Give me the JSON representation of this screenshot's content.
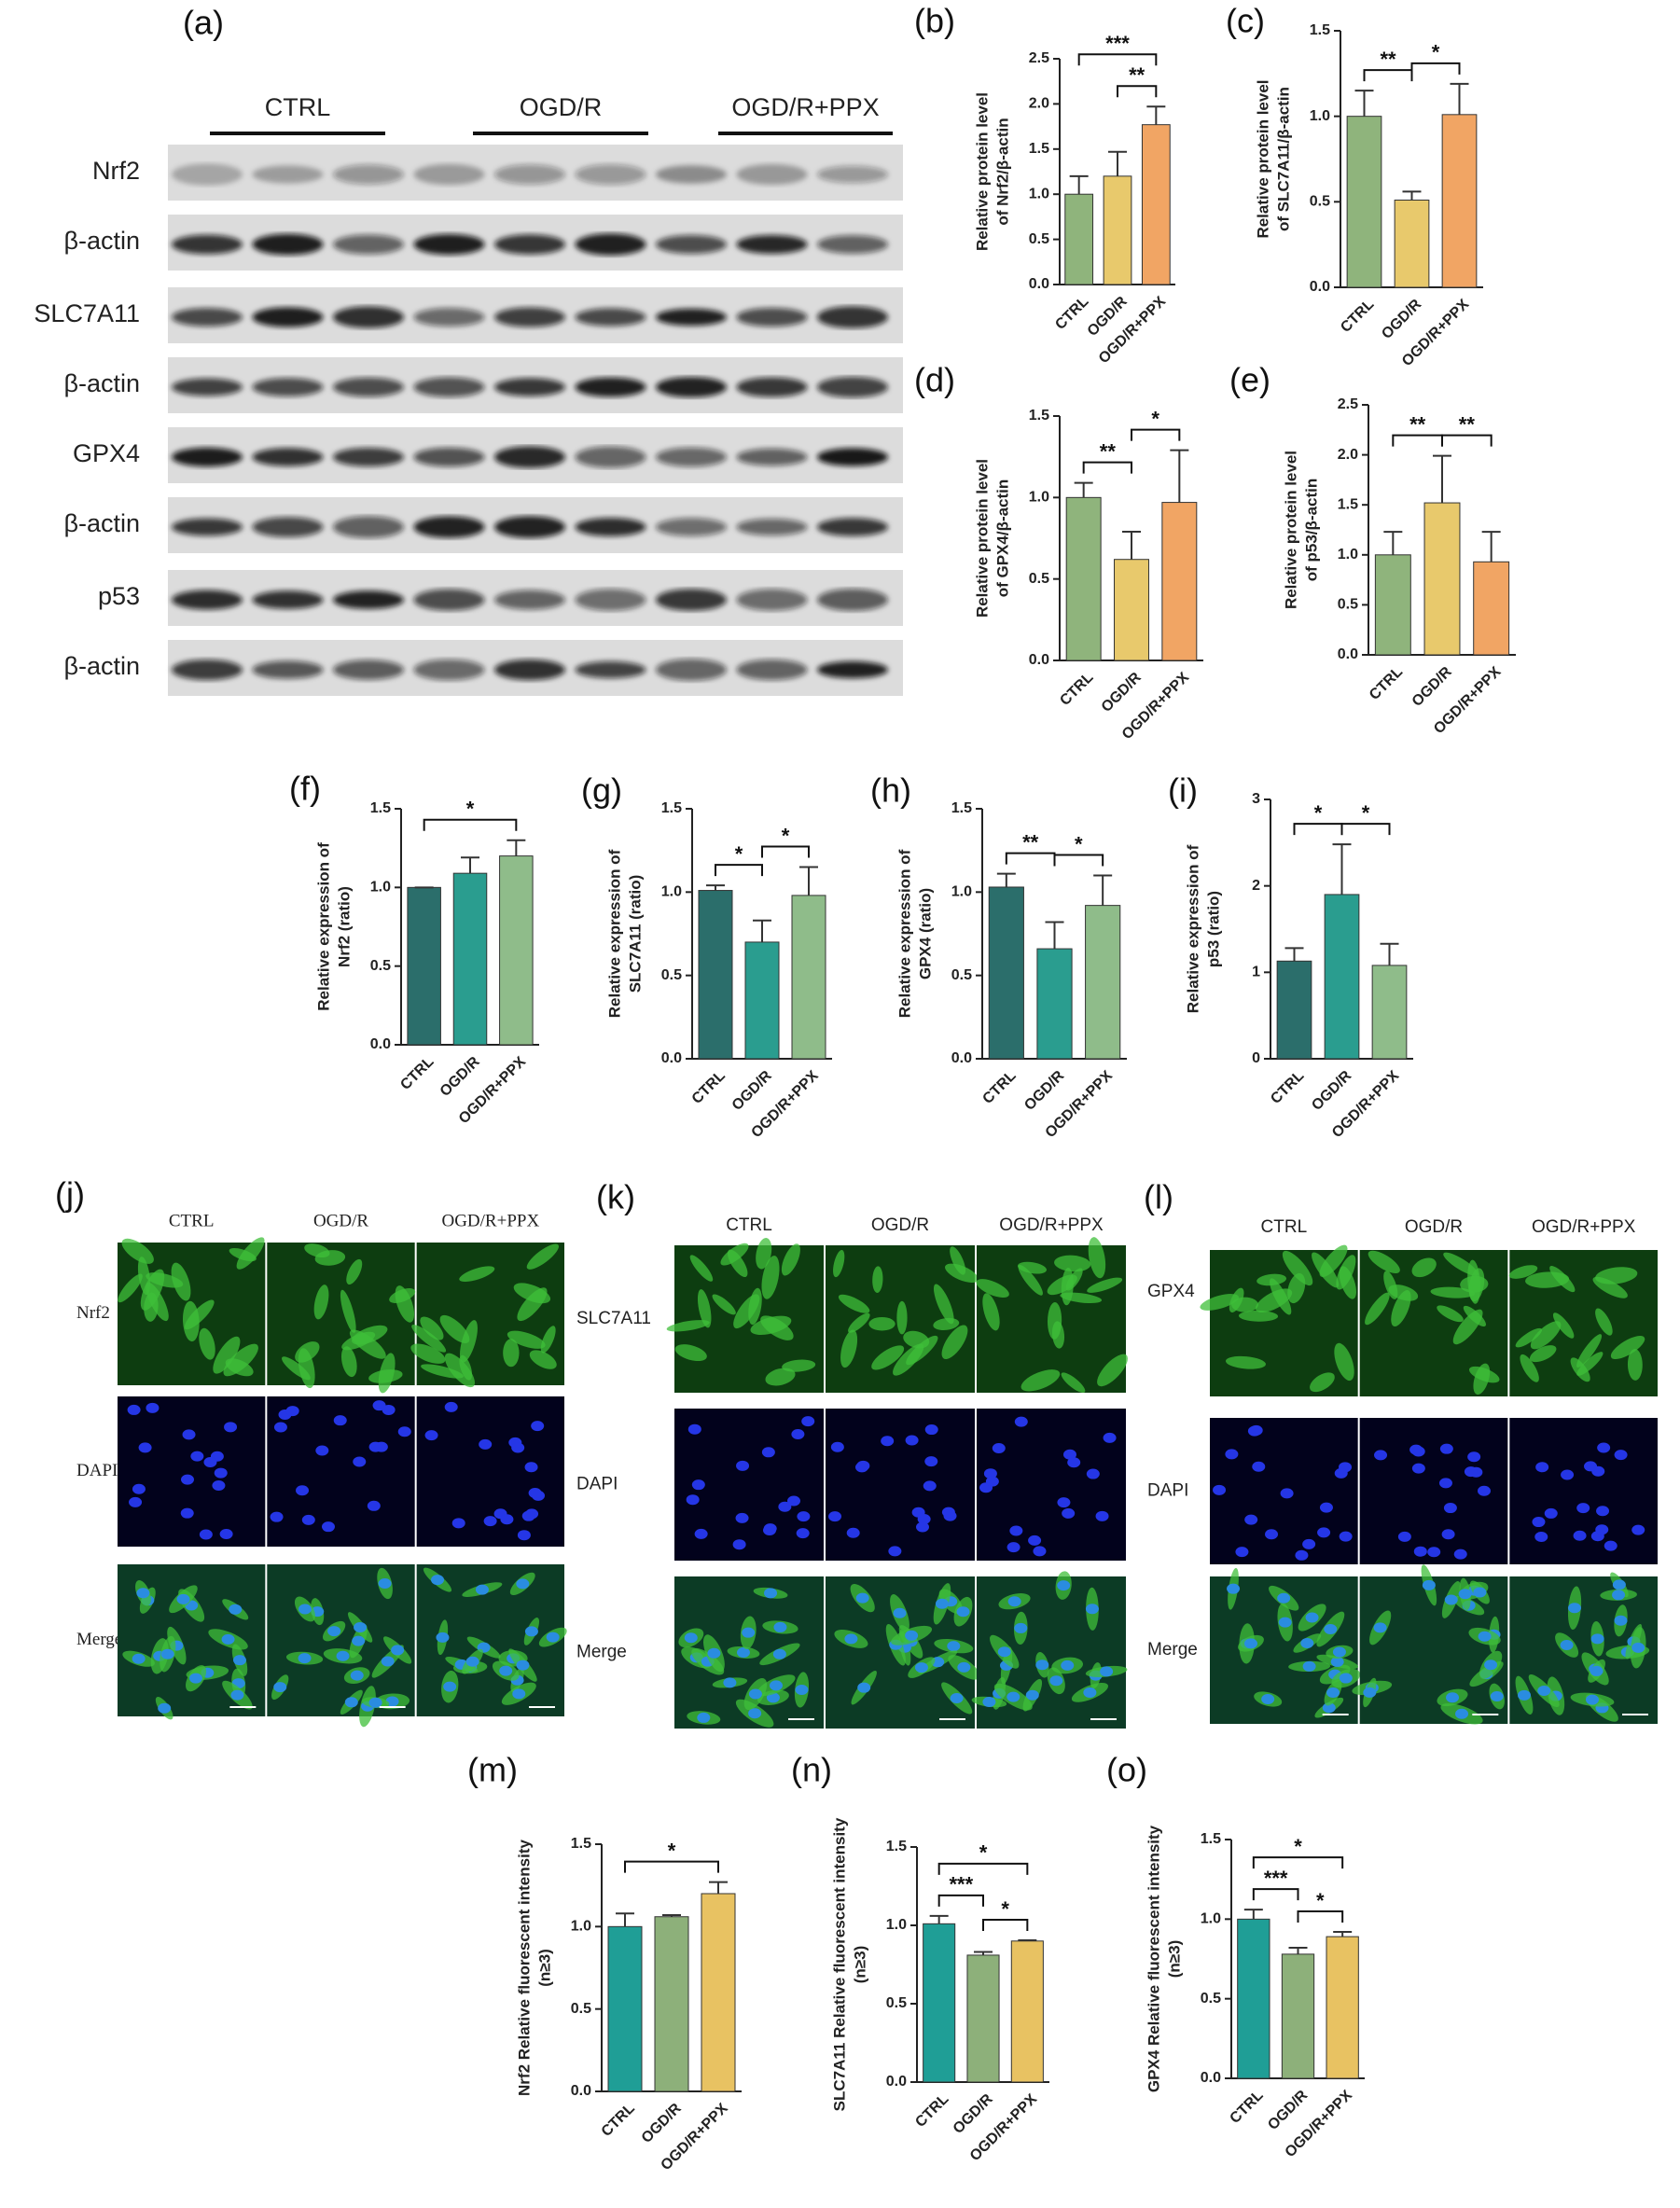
{
  "blot": {
    "label": "(a)",
    "groups": [
      "CTRL",
      "OGD/R",
      "OGD/R+PPX"
    ],
    "rows": [
      "Nrf2",
      "β-actin",
      "SLC7A11",
      "β-actin",
      "GPX4",
      "β-actin",
      "p53",
      "β-actin"
    ]
  },
  "chart_data": [
    {
      "type": "bar",
      "label": "(b)",
      "ylabel": [
        "Relative protein level",
        "of Nrf2/β-actin"
      ],
      "categories": [
        "CTRL",
        "OGD/R",
        "OGD/R+PPX"
      ],
      "values": [
        1.0,
        1.2,
        1.77
      ],
      "errors": [
        0.2,
        0.27,
        0.2
      ],
      "colors": [
        "#8fb47c",
        "#e8c96c",
        "#f1a564"
      ],
      "ylim": [
        0,
        2.5
      ],
      "yticks": [
        {
          "value": 0,
          "label": "0.0"
        },
        0.5,
        {
          "value": 1,
          "label": "1.0"
        },
        1.5,
        {
          "value": 2,
          "label": "2.0"
        },
        2.5
      ],
      "brackets": [
        {
          "label": "**",
          "between": [
            "OGD/R",
            "OGD/R+PPX"
          ]
        },
        {
          "label": "***",
          "between": [
            "CTRL",
            "OGD/R+PPX"
          ]
        }
      ]
    },
    {
      "type": "bar",
      "label": "(c)",
      "ylabel": [
        "Relative protein level",
        "of SLC7A11/β-actin"
      ],
      "categories": [
        "CTRL",
        "OGD/R",
        "OGD/R+PPX"
      ],
      "values": [
        1.0,
        0.51,
        1.01
      ],
      "errors": [
        0.15,
        0.05,
        0.18
      ],
      "colors": [
        "#8fb47c",
        "#e8c96c",
        "#f1a564"
      ],
      "ylim": [
        0,
        1.5
      ],
      "yticks": [
        {
          "value": 0,
          "label": "0.0"
        },
        0.5,
        {
          "value": 1,
          "label": "1.0"
        },
        1.5
      ],
      "brackets": [
        {
          "label": "**",
          "between": [
            "CTRL",
            "OGD/R"
          ]
        },
        {
          "label": "*",
          "between": [
            "OGD/R",
            "OGD/R+PPX"
          ]
        }
      ]
    },
    {
      "type": "bar",
      "label": "(d)",
      "ylabel": [
        "Relative protein level",
        "of GPX4/β-actin"
      ],
      "categories": [
        "CTRL",
        "OGD/R",
        "OGD/R+PPX"
      ],
      "values": [
        1.0,
        0.62,
        0.97
      ],
      "errors": [
        0.09,
        0.17,
        0.32
      ],
      "colors": [
        "#8fb47c",
        "#e8c96c",
        "#f1a564"
      ],
      "ylim": [
        0,
        1.5
      ],
      "yticks": [
        {
          "value": 0,
          "label": "0.0"
        },
        0.5,
        {
          "value": 1,
          "label": "1.0"
        },
        1.5
      ],
      "brackets": [
        {
          "label": "**",
          "between": [
            "CTRL",
            "OGD/R"
          ]
        },
        {
          "label": "*",
          "between": [
            "OGD/R",
            "OGD/R+PPX"
          ]
        }
      ]
    },
    {
      "type": "bar",
      "label": "(e)",
      "ylabel": [
        "Relative protein level",
        "of p53/β-actin"
      ],
      "categories": [
        "CTRL",
        "OGD/R",
        "OGD/R+PPX"
      ],
      "values": [
        1.0,
        1.52,
        0.93
      ],
      "errors": [
        0.23,
        0.47,
        0.3
      ],
      "colors": [
        "#8fb47c",
        "#e8c96c",
        "#f1a564"
      ],
      "ylim": [
        0,
        2.5
      ],
      "yticks": [
        {
          "value": 0,
          "label": "0.0"
        },
        0.5,
        {
          "value": 1,
          "label": "1.0"
        },
        1.5,
        {
          "value": 2,
          "label": "2.0"
        },
        2.5
      ],
      "brackets": [
        {
          "label": "**",
          "between": [
            "CTRL",
            "OGD/R"
          ]
        },
        {
          "label": "**",
          "between": [
            "OGD/R",
            "OGD/R+PPX"
          ]
        }
      ]
    },
    {
      "type": "bar",
      "label": "(f)",
      "ylabel": [
        "Relative expression of",
        "Nrf2 (ratio)"
      ],
      "categories": [
        "CTRL",
        "OGD/R",
        "OGD/R+PPX"
      ],
      "values": [
        1.0,
        1.09,
        1.2
      ],
      "errors": [
        0.0,
        0.1,
        0.1
      ],
      "colors": [
        "#2b6e6b",
        "#2a9d8f",
        "#8fbc8a"
      ],
      "ylim": [
        0,
        1.5
      ],
      "yticks": [
        {
          "value": 0,
          "label": "0.0"
        },
        0.5,
        {
          "value": 1,
          "label": "1.0"
        },
        1.5
      ],
      "brackets": [
        {
          "label": "*",
          "between": [
            "CTRL",
            "OGD/R+PPX"
          ]
        }
      ]
    },
    {
      "type": "bar",
      "label": "(g)",
      "ylabel": [
        "Relative expression of",
        "SLC7A11 (ratio)"
      ],
      "categories": [
        "CTRL",
        "OGD/R",
        "OGD/R+PPX"
      ],
      "values": [
        1.01,
        0.7,
        0.98
      ],
      "errors": [
        0.03,
        0.13,
        0.17
      ],
      "colors": [
        "#2b6e6b",
        "#2a9d8f",
        "#8fbc8a"
      ],
      "ylim": [
        0,
        1.5
      ],
      "yticks": [
        {
          "value": 0,
          "label": "0.0"
        },
        0.5,
        {
          "value": 1,
          "label": "1.0"
        },
        1.5
      ],
      "brackets": [
        {
          "label": "*",
          "between": [
            "CTRL",
            "OGD/R"
          ]
        },
        {
          "label": "*",
          "between": [
            "OGD/R",
            "OGD/R+PPX"
          ]
        }
      ]
    },
    {
      "type": "bar",
      "label": "(h)",
      "ylabel": [
        "Relative expression of",
        "GPX4 (ratio)"
      ],
      "categories": [
        "CTRL",
        "OGD/R",
        "OGD/R+PPX"
      ],
      "values": [
        1.03,
        0.66,
        0.92
      ],
      "errors": [
        0.08,
        0.16,
        0.18
      ],
      "colors": [
        "#2b6e6b",
        "#2a9d8f",
        "#8fbc8a"
      ],
      "ylim": [
        0,
        1.5
      ],
      "yticks": [
        {
          "value": 0,
          "label": "0.0"
        },
        0.5,
        {
          "value": 1,
          "label": "1.0"
        },
        1.5
      ],
      "brackets": [
        {
          "label": "**",
          "between": [
            "CTRL",
            "OGD/R"
          ]
        },
        {
          "label": "*",
          "between": [
            "OGD/R",
            "OGD/R+PPX"
          ]
        }
      ]
    },
    {
      "type": "bar",
      "label": "(i)",
      "ylabel": [
        "Relative expression of",
        "p53 (ratio)"
      ],
      "categories": [
        "CTRL",
        "OGD/R",
        "OGD/R+PPX"
      ],
      "values": [
        1.13,
        1.9,
        1.08
      ],
      "errors": [
        0.15,
        0.58,
        0.25
      ],
      "colors": [
        "#2b6e6b",
        "#2a9d8f",
        "#8fbc8a"
      ],
      "ylim": [
        0,
        3
      ],
      "yticks": [
        0,
        1,
        2,
        3
      ],
      "brackets": [
        {
          "label": "*",
          "between": [
            "CTRL",
            "OGD/R"
          ]
        },
        {
          "label": "*",
          "between": [
            "OGD/R",
            "OGD/R+PPX"
          ]
        }
      ]
    },
    {
      "type": "bar",
      "label": "(m)",
      "ylabel": [
        "Nrf2 Relative fluorescent intensity",
        "(n≥3)"
      ],
      "categories": [
        "CTRL",
        "OGD/R",
        "OGD/R+PPX"
      ],
      "values": [
        1.0,
        1.06,
        1.2
      ],
      "errors": [
        0.08,
        0.01,
        0.07
      ],
      "colors": [
        "#1f9e96",
        "#8db07a",
        "#e8c262"
      ],
      "ylim": [
        0,
        1.5
      ],
      "yticks": [
        {
          "value": 0,
          "label": "0.0"
        },
        0.5,
        {
          "value": 1,
          "label": "1.0"
        },
        1.5
      ],
      "brackets": [
        {
          "label": "*",
          "between": [
            "CTRL",
            "OGD/R+PPX"
          ]
        }
      ]
    },
    {
      "type": "bar",
      "label": "(n)",
      "ylabel": [
        "SLC7A11 Relative fluorescent intensity",
        "(n≥3)"
      ],
      "categories": [
        "CTRL",
        "OGD/R",
        "OGD/R+PPX"
      ],
      "values": [
        1.01,
        0.81,
        0.9
      ],
      "errors": [
        0.05,
        0.02,
        0.005
      ],
      "colors": [
        "#1f9e96",
        "#8db07a",
        "#e8c262"
      ],
      "ylim": [
        0,
        1.5
      ],
      "yticks": [
        {
          "value": 0,
          "label": "0.0"
        },
        0.5,
        {
          "value": 1,
          "label": "1.0"
        },
        1.5
      ],
      "brackets": [
        {
          "label": "***",
          "between": [
            "CTRL",
            "OGD/R"
          ]
        },
        {
          "label": "*",
          "between": [
            "OGD/R",
            "OGD/R+PPX"
          ]
        },
        {
          "label": "*",
          "between": [
            "CTRL",
            "OGD/R+PPX"
          ]
        }
      ]
    },
    {
      "type": "bar",
      "label": "(o)",
      "ylabel": [
        "GPX4 Relative fluorescent intensity",
        "(n≥3)"
      ],
      "categories": [
        "CTRL",
        "OGD/R",
        "OGD/R+PPX"
      ],
      "values": [
        1.0,
        0.78,
        0.89
      ],
      "errors": [
        0.06,
        0.04,
        0.03
      ],
      "colors": [
        "#1f9e96",
        "#8db07a",
        "#e8c262"
      ],
      "ylim": [
        0,
        1.5
      ],
      "yticks": [
        {
          "value": 0,
          "label": "0.0"
        },
        0.5,
        {
          "value": 1,
          "label": "1.0"
        },
        1.5
      ],
      "brackets": [
        {
          "label": "***",
          "between": [
            "CTRL",
            "OGD/R"
          ]
        },
        {
          "label": "*",
          "between": [
            "OGD/R",
            "OGD/R+PPX"
          ]
        },
        {
          "label": "*",
          "between": [
            "CTRL",
            "OGD/R+PPX"
          ]
        }
      ]
    }
  ],
  "images": [
    {
      "label": "(j)",
      "columns": [
        "CTRL",
        "OGD/R",
        "OGD/R+PPX"
      ],
      "rows": [
        "Nrf2",
        "DAPI",
        "Merge"
      ]
    },
    {
      "label": "(k)",
      "columns": [
        "CTRL",
        "OGD/R",
        "OGD/R+PPX"
      ],
      "rows": [
        "SLC7A11",
        "DAPI",
        "Merge"
      ]
    },
    {
      "label": "(l)",
      "columns": [
        "CTRL",
        "OGD/R",
        "OGD/R+PPX"
      ],
      "rows": [
        "GPX4",
        "DAPI",
        "Merge"
      ]
    }
  ]
}
